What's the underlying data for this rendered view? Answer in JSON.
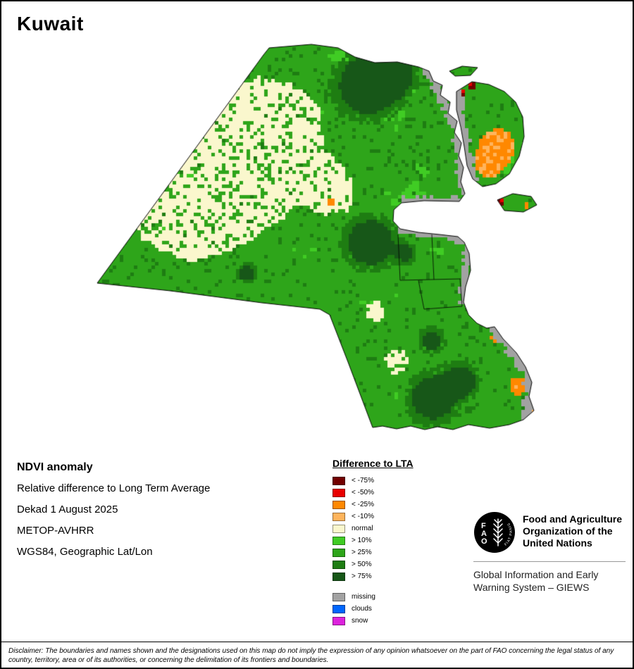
{
  "page": {
    "title": "Kuwait"
  },
  "info": {
    "heading": "NDVI anomaly",
    "lines": [
      "Relative difference to Long Term Average",
      "Dekad 1 August 2025",
      "METOP-AVHRR",
      "WGS84, Geographic Lat/Lon"
    ]
  },
  "legend": {
    "title": "Difference to LTA",
    "items": [
      {
        "label": "< -75%",
        "color": "#720000"
      },
      {
        "label": "< -50%",
        "color": "#e80000"
      },
      {
        "label": "< -25%",
        "color": "#ff8800"
      },
      {
        "label": "< -10%",
        "color": "#ffb45c"
      },
      {
        "label": "normal",
        "color": "#faf7cd"
      },
      {
        "label": "> 10%",
        "color": "#40cc24"
      },
      {
        "label": "> 25%",
        "color": "#2ea51a"
      },
      {
        "label": "> 50%",
        "color": "#1e7d12"
      },
      {
        "label": "> 75%",
        "color": "#175718"
      }
    ],
    "extra_items": [
      {
        "label": "missing",
        "color": "#a2a2a2"
      },
      {
        "label": "clouds",
        "color": "#0066ff"
      },
      {
        "label": "snow",
        "color": "#dd22dd"
      }
    ]
  },
  "fao": {
    "logo_text": "FAO",
    "motto": "FIAT PANIS",
    "org_lines": [
      "Food and Agriculture",
      "Organization of the",
      "United Nations"
    ],
    "giews_lines": [
      "Global Information and Early",
      "Warning System – GIEWS"
    ]
  },
  "disclaimer": "Disclaimer: The boundaries and names shown and the designations used on this map do not imply the expression of any opinion whatsoever on the part of FAO concerning the legal status of any country, territory, area or of its authorities, or concerning the delimitation of its frontiers and boundaries."
}
